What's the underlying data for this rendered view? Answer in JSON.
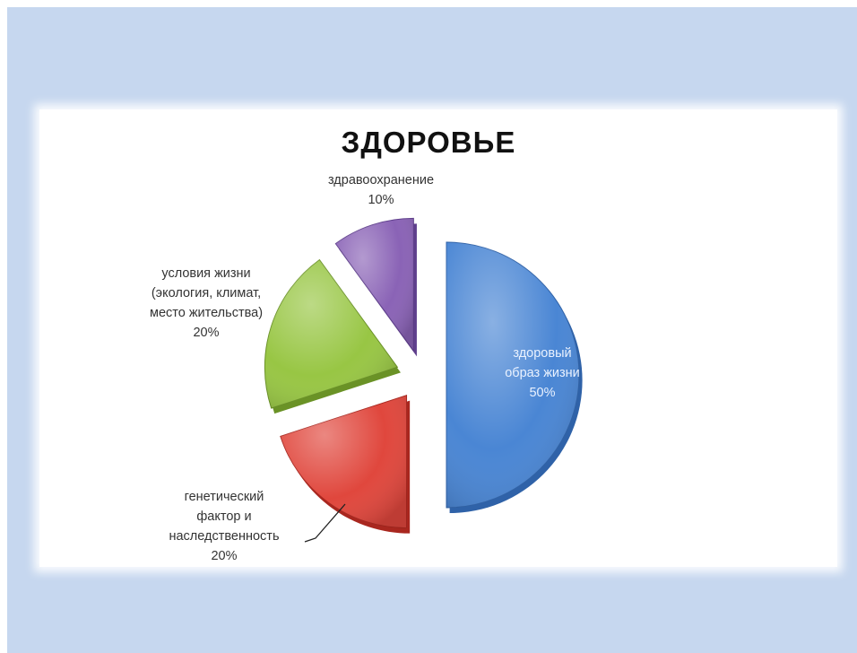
{
  "chart_data": {
    "type": "pie",
    "title": "ЗДОРОВЬЕ",
    "slices": [
      {
        "label_lines": [
          "здоровый",
          "образ жизни"
        ],
        "percent_label": "50%",
        "value": 50,
        "color": "#4a86d4",
        "dark": "#2f62a8"
      },
      {
        "label_lines": [
          "генетический",
          "фактор и",
          "наследственность"
        ],
        "percent_label": "20%",
        "value": 20,
        "color": "#e0473d",
        "dark": "#a9271f"
      },
      {
        "label_lines": [
          "условия жизни",
          "(экология, климат,",
          "место жительства)"
        ],
        "percent_label": "20%",
        "value": 20,
        "color": "#98c644",
        "dark": "#6a9226"
      },
      {
        "label_lines": [
          "здравоохранение"
        ],
        "percent_label": "10%",
        "value": 10,
        "color": "#8a63b6",
        "dark": "#5f3f8c"
      }
    ],
    "legend": "none",
    "labels": "outside-end with leader line"
  }
}
